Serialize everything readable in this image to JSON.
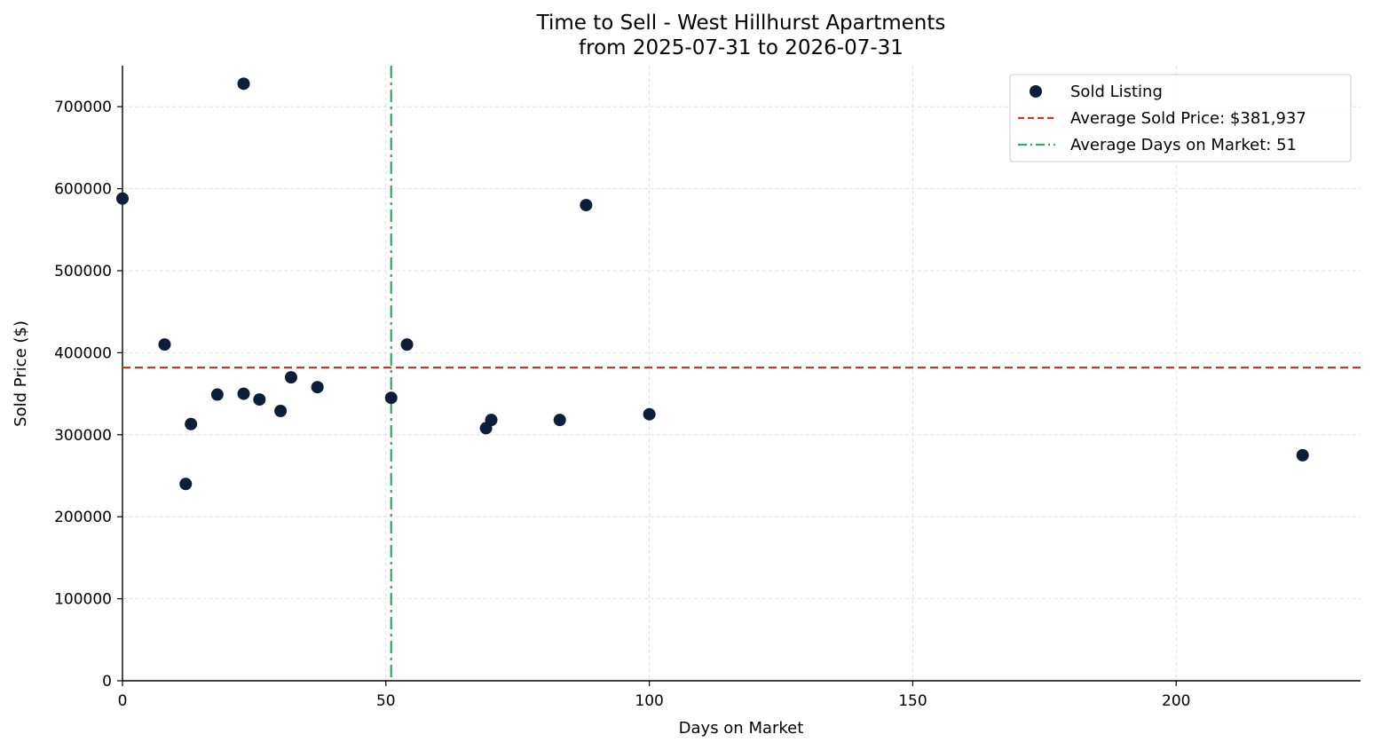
{
  "chart_data": {
    "type": "scatter",
    "title": "Time to Sell - West Hillhurst Apartments",
    "subtitle": "from 2025-07-31 to 2026-07-31",
    "xlabel": "Days on Market",
    "ylabel": "Sold Price ($)",
    "xlim": [
      0,
      235
    ],
    "ylim": [
      0,
      750000
    ],
    "x_ticks": [
      0,
      50,
      100,
      150,
      200
    ],
    "y_ticks": [
      0,
      100000,
      200000,
      300000,
      400000,
      500000,
      600000,
      700000
    ],
    "grid": true,
    "legend_position": "top-right",
    "series": [
      {
        "name": "Sold Listing",
        "color": "#0b1f3a",
        "points": [
          {
            "x": 0,
            "y": 588000
          },
          {
            "x": 8,
            "y": 410000
          },
          {
            "x": 12,
            "y": 240000
          },
          {
            "x": 13,
            "y": 313000
          },
          {
            "x": 18,
            "y": 349000
          },
          {
            "x": 23,
            "y": 728000
          },
          {
            "x": 23,
            "y": 350000
          },
          {
            "x": 26,
            "y": 343000
          },
          {
            "x": 30,
            "y": 329000
          },
          {
            "x": 32,
            "y": 370000
          },
          {
            "x": 37,
            "y": 358000
          },
          {
            "x": 51,
            "y": 345000
          },
          {
            "x": 54,
            "y": 410000
          },
          {
            "x": 69,
            "y": 308000
          },
          {
            "x": 70,
            "y": 318000
          },
          {
            "x": 83,
            "y": 318000
          },
          {
            "x": 88,
            "y": 580000
          },
          {
            "x": 100,
            "y": 325000
          },
          {
            "x": 224,
            "y": 275000
          }
        ]
      }
    ],
    "reference_lines": [
      {
        "orientation": "horizontal",
        "value": 381937,
        "label": "Average Sold Price: $381,937",
        "color": "#c0392b",
        "style": "dashed"
      },
      {
        "orientation": "vertical",
        "value": 51,
        "label": "Average Days on Market: 51",
        "color": "#27ae60",
        "style": "dashdot"
      }
    ]
  }
}
